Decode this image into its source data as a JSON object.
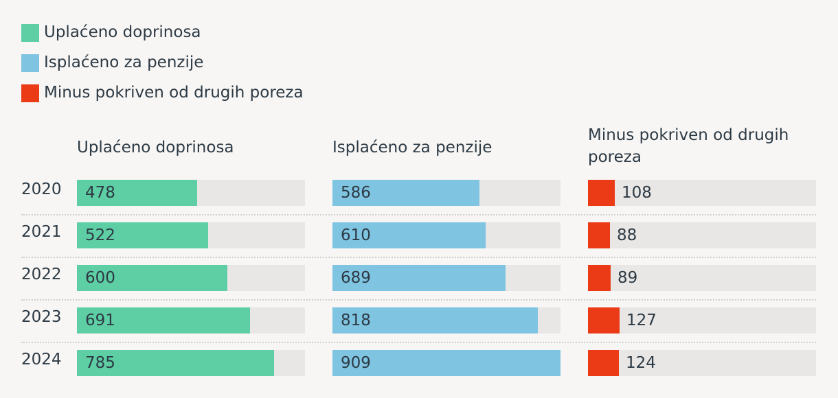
{
  "chart_data": {
    "type": "bar",
    "orientation": "horizontal",
    "categories": [
      "2020",
      "2021",
      "2022",
      "2023",
      "2024"
    ],
    "xlim": [
      0,
      909
    ],
    "legend": [
      {
        "label": "Uplaćeno doprinosa",
        "color": "#5ecfa4"
      },
      {
        "label": "Isplaćeno za penzije",
        "color": "#7fc4e0"
      },
      {
        "label": "Minus pokriven od drugih poreza",
        "color": "#ea3a16"
      }
    ],
    "series": [
      {
        "name": "Uplaćeno doprinosa",
        "color": "#5ecfa4",
        "values": [
          478,
          522,
          600,
          691,
          785
        ]
      },
      {
        "name": "Isplaćeno za penzije",
        "color": "#7fc4e0",
        "values": [
          586,
          610,
          689,
          818,
          909
        ]
      },
      {
        "name": "Minus pokriven od drugih poreza",
        "color": "#ea3a16",
        "values": [
          108,
          88,
          89,
          127,
          124
        ]
      }
    ]
  }
}
